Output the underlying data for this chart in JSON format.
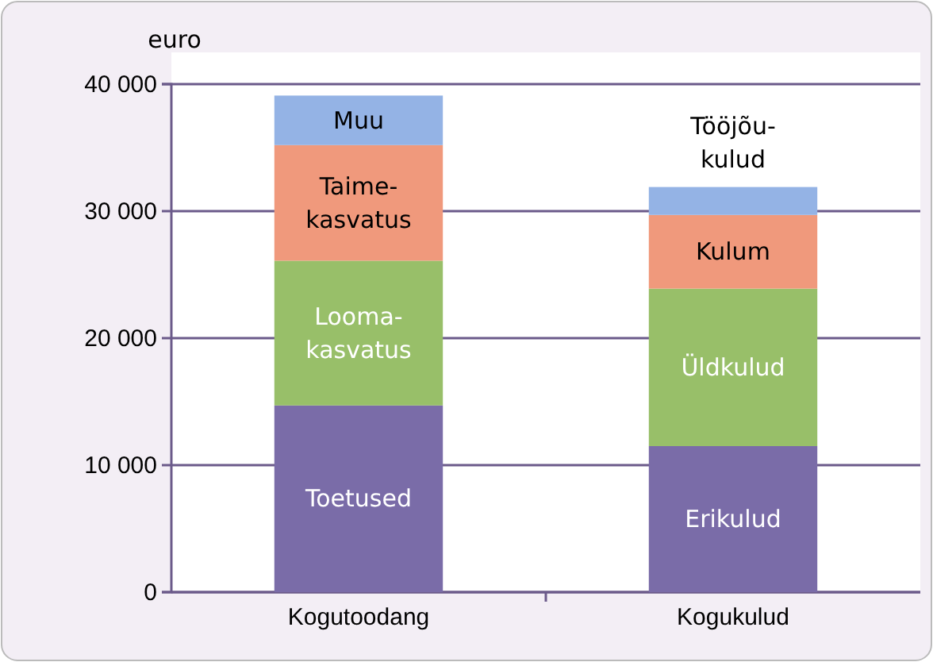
{
  "chart_data": {
    "type": "bar",
    "stacked": true,
    "ylabel": "euro",
    "categories": [
      "Kogutoodang",
      "Kogukulud"
    ],
    "series": [
      {
        "name": "Toetused",
        "color": "#7a6ca8",
        "values": [
          14700,
          null
        ]
      },
      {
        "name": "Erikulud",
        "color": "#7a6ca8",
        "values": [
          null,
          11500
        ]
      },
      {
        "name": "Looma-kasvatus",
        "color": "#98bf69",
        "values": [
          11400,
          null
        ]
      },
      {
        "name": "Üldkulud",
        "color": "#98bf69",
        "values": [
          null,
          12400
        ]
      },
      {
        "name": "Taime-kasvatus",
        "color": "#f0997c",
        "values": [
          9100,
          null
        ]
      },
      {
        "name": "Kulum",
        "color": "#f0997c",
        "values": [
          null,
          5800
        ]
      },
      {
        "name": "Muu",
        "color": "#94b3e5",
        "values": [
          3900,
          null
        ]
      },
      {
        "name": "Tööjõu-kulud",
        "color": "#94b3e5",
        "values": [
          null,
          2200
        ]
      }
    ],
    "ylim": [
      0,
      40000
    ],
    "yticks": [
      0,
      {
        "value": 10000,
        "label": "10 000"
      },
      {
        "value": 20000,
        "label": "20 000"
      },
      {
        "value": 30000,
        "label": "30 000"
      },
      {
        "value": 40000,
        "label": "40 000"
      }
    ],
    "grid": "y"
  }
}
